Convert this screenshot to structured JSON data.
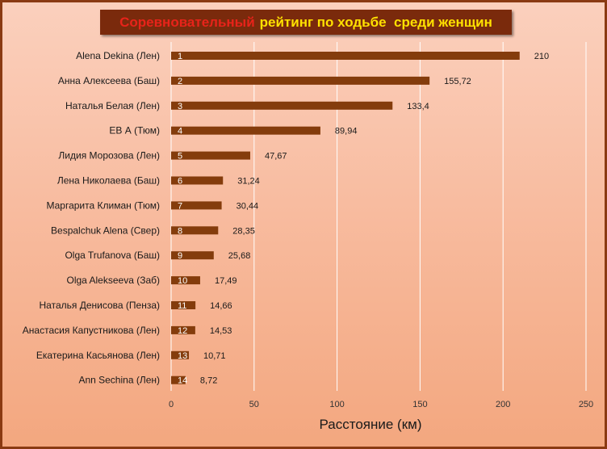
{
  "chart_data": {
    "type": "bar",
    "orientation": "horizontal",
    "title_parts": [
      "Соревновательный",
      "рейтинг по ходьбе  среди женщин"
    ],
    "title_colors": [
      "#e8231a",
      "#ffe100"
    ],
    "categories": [
      "Alena Dekina (Лен)",
      "Анна Алексеева (Баш)",
      "Наталья Белая (Лен)",
      "ЕВ А (Тюм)",
      "Лидия Морозова (Лен)",
      "Лена Николаева (Баш)",
      "Маргарита Климан (Тюм)",
      "Bespalchuk Alena (Свер)",
      "Olga Trufanova (Баш)",
      "Olga Alekseeva (Заб)",
      "Наталья Денисова (Пенза)",
      "Анастасия Капустникова (Лен)",
      "Екатерина Касьянова (Лен)",
      "Ann Sechina (Лен)"
    ],
    "ranks": [
      "1",
      "2",
      "3",
      "4",
      "5",
      "6",
      "7",
      "8",
      "9",
      "10",
      "11",
      "12",
      "13",
      "14"
    ],
    "values": [
      210,
      155.72,
      133.4,
      89.94,
      47.67,
      31.24,
      30.44,
      28.35,
      25.68,
      17.49,
      14.66,
      14.53,
      10.71,
      8.72
    ],
    "value_labels": [
      "210",
      "155,72",
      "133,4",
      "89,94",
      "47,67",
      "31,24",
      "30,44",
      "28,35",
      "25,68",
      "17,49",
      "14,66",
      "14,53",
      "10,71",
      "8,72"
    ],
    "xlabel": "Расстояние (км)",
    "ylabel": "",
    "xlim": [
      0,
      250
    ],
    "xticks": [
      0,
      50,
      100,
      150,
      200,
      250
    ],
    "grid": "vertical",
    "bar_color": "#843c0c",
    "gridline_color": "#ffffff"
  }
}
